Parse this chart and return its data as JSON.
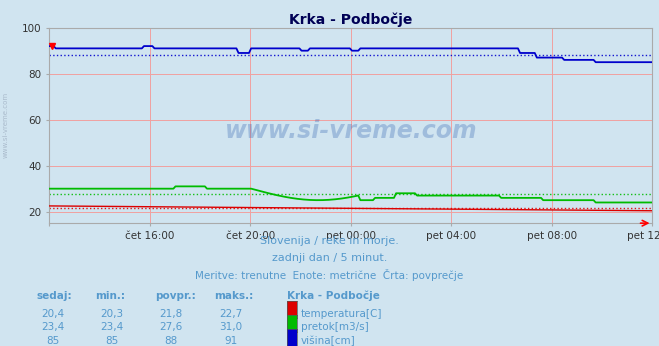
{
  "title": "Krka - Podbočje",
  "bg_color": "#d0e4f0",
  "plot_bg_color": "#d0e4f0",
  "grid_h_color": "#f0a0a0",
  "grid_v_color": "#f0a0a0",
  "ylim": [
    15,
    100
  ],
  "yticks": [
    20,
    40,
    60,
    80,
    100
  ],
  "xlabel_times": [
    "čet 16:00",
    "čet 20:00",
    "pet 00:00",
    "pet 04:00",
    "pet 08:00",
    "pet 12:00"
  ],
  "temp_color": "#dd0000",
  "pretok_color": "#00bb00",
  "visina_color": "#0000cc",
  "avg_temp": 21.8,
  "avg_pretok": 27.6,
  "avg_visina": 88,
  "temp_min": 20.3,
  "temp_max": 22.7,
  "temp_sedaj": "20,4",
  "pretok_min": 23.4,
  "pretok_max": 31.0,
  "pretok_sedaj": "23,4",
  "visina_min": 85,
  "visina_max": 91,
  "visina_sedaj": 85,
  "subtitle1": "Slovenija / reke in morje.",
  "subtitle2": "zadnji dan / 5 minut.",
  "subtitle3": "Meritve: trenutne  Enote: metrične  Črta: povprečje",
  "table_headers": [
    "sedaj:",
    "min.:",
    "povpr.:",
    "maks.:",
    "Krka - Podbočje"
  ],
  "row1": [
    "20,4",
    "20,3",
    "21,8",
    "22,7",
    "temperatura[C]"
  ],
  "row2": [
    "23,4",
    "23,4",
    "27,6",
    "31,0",
    "pretok[m3/s]"
  ],
  "row3": [
    "85",
    "85",
    "88",
    "91",
    "višina[cm]"
  ],
  "watermark": "www.si-vreme.com",
  "text_color": "#5599cc",
  "title_color": "#000055",
  "side_text_color": "#aabbcc"
}
